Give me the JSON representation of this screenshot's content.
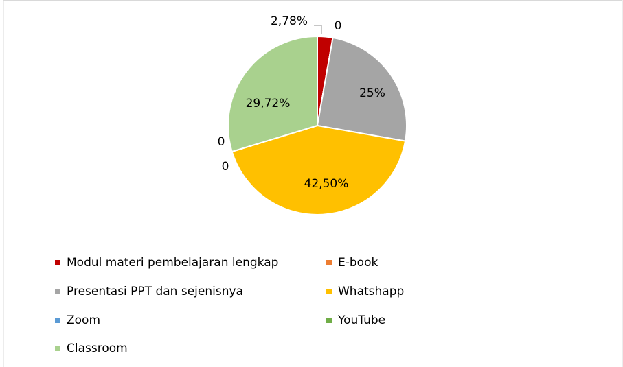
{
  "chart_data": {
    "type": "pie",
    "categories": [
      "Modul materi pembelajaran lengkap",
      "E-book",
      "Presentasi PPT dan sejenisnya",
      "Whatshapp",
      "Zoom",
      "YouTube",
      "Classroom"
    ],
    "values": [
      2.78,
      0,
      25,
      42.5,
      0,
      0,
      29.72
    ],
    "value_labels": [
      "2,78%",
      "0",
      "25%",
      "42,50%",
      "0",
      "0",
      "29,72%"
    ],
    "colors": [
      "#c00000",
      "#ed7d31",
      "#a5a5a5",
      "#ffc000",
      "#5b9bd5",
      "#70ad47",
      "#a9d18e"
    ],
    "legend": "bottom"
  }
}
